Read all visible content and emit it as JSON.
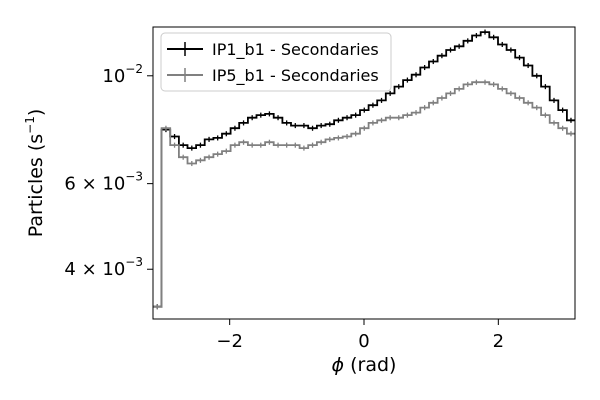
{
  "chart_data": {
    "type": "line",
    "xlabel_symbol": "ϕ",
    "xlabel_rest": " (rad)",
    "ylabel_main": "Particles (s",
    "ylabel_sup": "−1",
    "ylabel_end": ")",
    "xlim": [
      -3.1416,
      3.1416
    ],
    "ylim": [
      0.00316,
      0.0126
    ],
    "yscale": "log",
    "x_ticks": [
      {
        "value": -2,
        "label": "−2"
      },
      {
        "value": 0,
        "label": "0"
      },
      {
        "value": 2,
        "label": "2"
      }
    ],
    "y_ticks": [
      {
        "value": 0.004,
        "mant": "4 × 10",
        "exp": "−3"
      },
      {
        "value": 0.006,
        "mant": "6 × 10",
        "exp": "−3"
      },
      {
        "value": 0.01,
        "mant": "10",
        "exp": "−2"
      }
    ],
    "legend_position": "top-left",
    "step_histogram": true,
    "x_edges": [
      -3.1416,
      -3.0132,
      -2.8848,
      -2.7564,
      -2.628,
      -2.4996,
      -2.3712,
      -2.2428,
      -2.1144,
      -1.986,
      -1.8576,
      -1.7292,
      -1.6008,
      -1.4724,
      -1.344,
      -1.2156,
      -1.0872,
      -0.9588,
      -0.8304,
      -0.702,
      -0.5736,
      -0.4452,
      -0.3168,
      -0.1884,
      -0.06,
      0.0684,
      0.1968,
      0.3252,
      0.4536,
      0.582,
      0.7104,
      0.8388,
      0.9672,
      1.0956,
      1.224,
      1.3524,
      1.4808,
      1.6092,
      1.7376,
      1.866,
      1.9944,
      2.1228,
      2.2512,
      2.3796,
      2.508,
      2.6364,
      2.7648,
      2.8932,
      3.0216,
      3.1416
    ],
    "series": [
      {
        "name": "IP1_b1 - Secondaries",
        "color": "#000000",
        "edge_values": [
          0.00335,
          0.00335
        ],
        "values": [
          0.00775,
          0.0075,
          0.0072,
          0.0071,
          0.0072,
          0.0074,
          0.00745,
          0.0076,
          0.0078,
          0.008,
          0.0082,
          0.0083,
          0.00835,
          0.0082,
          0.008,
          0.0079,
          0.0079,
          0.0078,
          0.0079,
          0.00795,
          0.0081,
          0.0082,
          0.0083,
          0.0085,
          0.0087,
          0.0089,
          0.0092,
          0.0095,
          0.0098,
          0.01005,
          0.0104,
          0.0107,
          0.011,
          0.0113,
          0.0115,
          0.0118,
          0.0121,
          0.0123,
          0.012,
          0.0116,
          0.0113,
          0.0109,
          0.0105,
          0.01,
          0.0095,
          0.0089,
          0.0085,
          0.0081,
          0.0079
        ]
      },
      {
        "name": "IP5_b1 - Secondaries",
        "color": "#808080",
        "edge_values": [
          0.00335,
          0.00335
        ],
        "values": [
          0.0078,
          0.0072,
          0.0068,
          0.0066,
          0.0067,
          0.0068,
          0.0069,
          0.007,
          0.0072,
          0.0073,
          0.0072,
          0.0072,
          0.0073,
          0.0072,
          0.0072,
          0.0072,
          0.0071,
          0.0072,
          0.0073,
          0.0074,
          0.00745,
          0.0075,
          0.0076,
          0.0078,
          0.008,
          0.0081,
          0.0082,
          0.0082,
          0.0083,
          0.0084,
          0.0086,
          0.0088,
          0.009,
          0.0092,
          0.0094,
          0.0096,
          0.0097,
          0.0097,
          0.0096,
          0.0094,
          0.0092,
          0.009,
          0.0088,
          0.0086,
          0.0083,
          0.008,
          0.0078,
          0.0076,
          0.0075
        ]
      }
    ]
  }
}
